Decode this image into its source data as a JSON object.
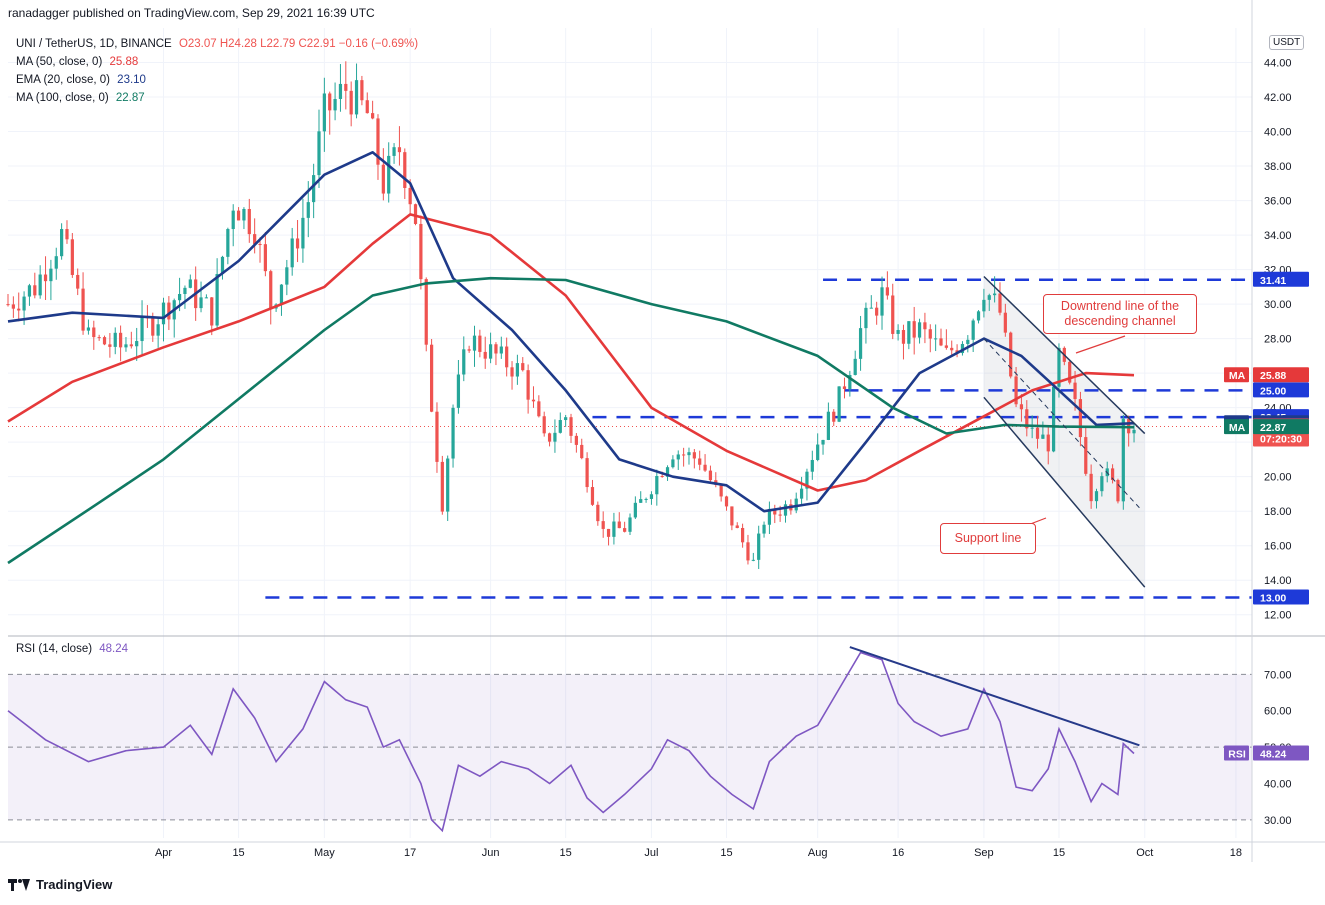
{
  "header": {
    "published": "ranadagger published on TradingView.com, Sep 29, 2021 16:39 UTC"
  },
  "legend": {
    "symbol": "UNI / TetherUS, 1D, BINANCE",
    "ohlc": "O23.07  H24.28  L22.79  C22.91  −0.16 (−0.69%)",
    "ma50_label": "MA (50, close, 0)",
    "ma50_value": "25.88",
    "ema20_label": "EMA (20, close, 0)",
    "ema20_value": "23.10",
    "ma100_label": "MA (100, close, 0)",
    "ma100_value": "22.87",
    "rsi_label": "RSI (14, close)",
    "rsi_value": "48.24",
    "currency": "USDT"
  },
  "annotations": {
    "downtrend": "Downtrend line of the descending channel",
    "support": "Support line"
  },
  "footer": {
    "brand": "TradingView"
  },
  "colors": {
    "up": "#26a69a",
    "down": "#ef5350",
    "ema20": "#1e3a8a",
    "ma50": "#e5393a",
    "ma100": "#107a63",
    "rsi": "#7e57c2",
    "level": "#1e3ad8"
  },
  "chart_data": [
    {
      "type": "candlestick",
      "title": "UNI / TetherUS, 1D, BINANCE",
      "ylim": [
        11,
        46
      ],
      "y_ticks": [
        12,
        14,
        16,
        18,
        20,
        22,
        24,
        26,
        28,
        30,
        32,
        34,
        36,
        38,
        40,
        42,
        44
      ],
      "x_ticks": [
        "Apr",
        "15",
        "May",
        "17",
        "Jun",
        "15",
        "Jul",
        "15",
        "Aug",
        "16",
        "Sep",
        "15",
        "Oct",
        "18"
      ],
      "x_tick_dates": [
        "2021-04-01",
        "2021-04-15",
        "2021-05-01",
        "2021-05-17",
        "2021-06-01",
        "2021-06-15",
        "2021-07-01",
        "2021-07-15",
        "2021-08-01",
        "2021-08-16",
        "2021-09-01",
        "2021-09-15",
        "2021-10-01",
        "2021-10-18"
      ],
      "x_range": [
        "2021-03-03",
        "2021-10-21"
      ],
      "close_keypoints": [
        [
          "2021-03-03",
          30.0
        ],
        [
          "2021-03-08",
          31.0
        ],
        [
          "2021-03-13",
          34.0
        ],
        [
          "2021-03-18",
          28.0
        ],
        [
          "2021-03-24",
          27.5
        ],
        [
          "2021-03-30",
          29.0
        ],
        [
          "2021-04-05",
          31.0
        ],
        [
          "2021-04-10",
          29.5
        ],
        [
          "2021-04-14",
          36.0
        ],
        [
          "2021-04-18",
          34.5
        ],
        [
          "2021-04-21",
          30.0
        ],
        [
          "2021-04-25",
          33.0
        ],
        [
          "2021-04-28",
          36.0
        ],
        [
          "2021-05-01",
          41.0
        ],
        [
          "2021-05-05",
          42.5
        ],
        [
          "2021-05-09",
          41.0
        ],
        [
          "2021-05-12",
          37.0
        ],
        [
          "2021-05-15",
          39.0
        ],
        [
          "2021-05-18",
          35.0
        ],
        [
          "2021-05-20",
          27.0
        ],
        [
          "2021-05-23",
          18.5
        ],
        [
          "2021-05-25",
          24.0
        ],
        [
          "2021-05-28",
          28.0
        ],
        [
          "2021-06-02",
          27.0
        ],
        [
          "2021-06-07",
          26.0
        ],
        [
          "2021-06-11",
          22.0
        ],
        [
          "2021-06-15",
          23.5
        ],
        [
          "2021-06-19",
          20.0
        ],
        [
          "2021-06-22",
          16.8
        ],
        [
          "2021-06-26",
          17.0
        ],
        [
          "2021-07-01",
          19.5
        ],
        [
          "2021-07-05",
          21.5
        ],
        [
          "2021-07-10",
          21.0
        ],
        [
          "2021-07-15",
          18.0
        ],
        [
          "2021-07-20",
          15.0
        ],
        [
          "2021-07-22",
          17.5
        ],
        [
          "2021-07-27",
          18.5
        ],
        [
          "2021-08-01",
          22.0
        ],
        [
          "2021-08-05",
          24.5
        ],
        [
          "2021-08-09",
          28.5
        ],
        [
          "2021-08-13",
          30.5
        ],
        [
          "2021-08-16",
          28.0
        ],
        [
          "2021-08-20",
          28.5
        ],
        [
          "2021-08-25",
          27.0
        ],
        [
          "2021-08-29",
          28.5
        ],
        [
          "2021-09-01",
          31.0
        ],
        [
          "2021-09-04",
          29.5
        ],
        [
          "2021-09-07",
          24.0
        ],
        [
          "2021-09-10",
          22.5
        ],
        [
          "2021-09-13",
          22.0
        ],
        [
          "2021-09-15",
          27.0
        ],
        [
          "2021-09-18",
          24.0
        ],
        [
          "2021-09-21",
          19.0
        ],
        [
          "2021-09-23",
          20.5
        ],
        [
          "2021-09-26",
          19.0
        ],
        [
          "2021-09-27",
          23.5
        ],
        [
          "2021-09-29",
          22.91
        ]
      ],
      "series": [
        {
          "name": "MA (50, close, 0)",
          "points": [
            [
              "2021-03-03",
              23.2
            ],
            [
              "2021-03-15",
              25.5
            ],
            [
              "2021-04-01",
              27.5
            ],
            [
              "2021-04-15",
              29.0
            ],
            [
              "2021-05-01",
              31.0
            ],
            [
              "2021-05-10",
              33.5
            ],
            [
              "2021-05-17",
              35.2
            ],
            [
              "2021-06-01",
              34.0
            ],
            [
              "2021-06-15",
              30.5
            ],
            [
              "2021-07-01",
              24.0
            ],
            [
              "2021-07-15",
              21.5
            ],
            [
              "2021-08-01",
              19.2
            ],
            [
              "2021-08-10",
              19.8
            ],
            [
              "2021-08-20",
              21.5
            ],
            [
              "2021-09-01",
              23.5
            ],
            [
              "2021-09-10",
              25.0
            ],
            [
              "2021-09-20",
              26.0
            ],
            [
              "2021-09-29",
              25.88
            ]
          ]
        },
        {
          "name": "EMA (20, close, 0)",
          "points": [
            [
              "2021-03-03",
              29.0
            ],
            [
              "2021-03-15",
              29.5
            ],
            [
              "2021-04-01",
              29.2
            ],
            [
              "2021-04-15",
              32.5
            ],
            [
              "2021-05-01",
              37.5
            ],
            [
              "2021-05-10",
              38.8
            ],
            [
              "2021-05-17",
              37.0
            ],
            [
              "2021-05-25",
              31.5
            ],
            [
              "2021-06-05",
              28.5
            ],
            [
              "2021-06-15",
              25.0
            ],
            [
              "2021-06-25",
              21.0
            ],
            [
              "2021-07-05",
              20.0
            ],
            [
              "2021-07-15",
              19.5
            ],
            [
              "2021-07-22",
              18.0
            ],
            [
              "2021-08-01",
              18.5
            ],
            [
              "2021-08-10",
              22.0
            ],
            [
              "2021-08-20",
              26.0
            ],
            [
              "2021-09-01",
              28.0
            ],
            [
              "2021-09-08",
              27.0
            ],
            [
              "2021-09-15",
              25.0
            ],
            [
              "2021-09-22",
              23.0
            ],
            [
              "2021-09-29",
              23.1
            ]
          ]
        },
        {
          "name": "MA (100, close, 0)",
          "points": [
            [
              "2021-03-03",
              15.0
            ],
            [
              "2021-03-20",
              18.5
            ],
            [
              "2021-04-01",
              21.0
            ],
            [
              "2021-04-15",
              24.5
            ],
            [
              "2021-05-01",
              28.5
            ],
            [
              "2021-05-10",
              30.5
            ],
            [
              "2021-05-20",
              31.2
            ],
            [
              "2021-06-01",
              31.5
            ],
            [
              "2021-06-15",
              31.4
            ],
            [
              "2021-07-01",
              30.0
            ],
            [
              "2021-07-15",
              29.0
            ],
            [
              "2021-08-01",
              27.0
            ],
            [
              "2021-08-15",
              24.0
            ],
            [
              "2021-08-25",
              22.5
            ],
            [
              "2021-09-05",
              23.0
            ],
            [
              "2021-09-15",
              22.9
            ],
            [
              "2021-09-29",
              22.87
            ]
          ]
        }
      ],
      "levels": [
        {
          "label": "31.41",
          "value": 31.41
        },
        {
          "label": "25.00",
          "value": 25.0
        },
        {
          "label": "23.45",
          "value": 23.45
        },
        {
          "label": "13.00",
          "value": 13.0
        }
      ],
      "price_tags": [
        {
          "tag": "MA",
          "value": 25.88,
          "label": "25.88"
        },
        {
          "tag": "EMA",
          "value": 23.1,
          "label": "23.10"
        },
        {
          "tag": "",
          "value": 22.91,
          "label": "22.91",
          "sub": "07:20:30"
        },
        {
          "tag": "MA",
          "value": 22.87,
          "label": "22.87"
        }
      ],
      "trendlines": [
        {
          "name": "downtrend",
          "from": [
            "2021-09-01",
            31.6
          ],
          "to": [
            "2021-10-01",
            22.5
          ]
        },
        {
          "name": "support",
          "from": [
            "2021-09-01",
            24.6
          ],
          "to": [
            "2021-10-01",
            13.6
          ]
        },
        {
          "name": "midline",
          "from": [
            "2021-09-01",
            28.0
          ],
          "to": [
            "2021-09-30",
            18.2
          ]
        }
      ]
    },
    {
      "type": "line",
      "title": "RSI (14, close)",
      "ylim": [
        25,
        80
      ],
      "y_ticks": [
        30,
        40,
        50,
        60,
        70
      ],
      "bands": [
        30,
        70
      ],
      "series": [
        {
          "name": "RSI (14, close)",
          "points": [
            [
              "2021-03-03",
              60
            ],
            [
              "2021-03-10",
              52
            ],
            [
              "2021-03-18",
              46
            ],
            [
              "2021-03-25",
              49
            ],
            [
              "2021-04-01",
              50
            ],
            [
              "2021-04-06",
              56
            ],
            [
              "2021-04-10",
              48
            ],
            [
              "2021-04-14",
              66
            ],
            [
              "2021-04-18",
              58
            ],
            [
              "2021-04-22",
              46
            ],
            [
              "2021-04-27",
              55
            ],
            [
              "2021-05-01",
              68
            ],
            [
              "2021-05-05",
              63
            ],
            [
              "2021-05-09",
              61
            ],
            [
              "2021-05-12",
              50
            ],
            [
              "2021-05-15",
              52
            ],
            [
              "2021-05-19",
              40
            ],
            [
              "2021-05-21",
              30
            ],
            [
              "2021-05-23",
              27
            ],
            [
              "2021-05-26",
              45
            ],
            [
              "2021-05-30",
              42
            ],
            [
              "2021-06-03",
              46
            ],
            [
              "2021-06-08",
              44
            ],
            [
              "2021-06-12",
              40
            ],
            [
              "2021-06-16",
              45
            ],
            [
              "2021-06-19",
              36
            ],
            [
              "2021-06-22",
              32
            ],
            [
              "2021-06-26",
              37
            ],
            [
              "2021-07-01",
              44
            ],
            [
              "2021-07-04",
              52
            ],
            [
              "2021-07-08",
              49
            ],
            [
              "2021-07-12",
              42
            ],
            [
              "2021-07-16",
              37
            ],
            [
              "2021-07-20",
              33
            ],
            [
              "2021-07-23",
              46
            ],
            [
              "2021-07-28",
              53
            ],
            [
              "2021-08-01",
              56
            ],
            [
              "2021-08-05",
              66
            ],
            [
              "2021-08-09",
              76
            ],
            [
              "2021-08-13",
              74
            ],
            [
              "2021-08-16",
              62
            ],
            [
              "2021-08-19",
              57
            ],
            [
              "2021-08-24",
              53
            ],
            [
              "2021-08-29",
              55
            ],
            [
              "2021-09-01",
              66
            ],
            [
              "2021-09-04",
              57
            ],
            [
              "2021-09-07",
              39
            ],
            [
              "2021-09-10",
              38
            ],
            [
              "2021-09-13",
              44
            ],
            [
              "2021-09-15",
              55
            ],
            [
              "2021-09-18",
              46
            ],
            [
              "2021-09-21",
              35
            ],
            [
              "2021-09-23",
              40
            ],
            [
              "2021-09-26",
              37
            ],
            [
              "2021-09-27",
              51
            ],
            [
              "2021-09-29",
              48.24
            ]
          ]
        }
      ],
      "trendlines": [
        {
          "name": "rsi-downtrend",
          "from": [
            "2021-08-07",
            77.5
          ],
          "to": [
            "2021-09-30",
            50.5
          ]
        }
      ],
      "price_tags": [
        {
          "tag": "RSI",
          "value": 48.24,
          "label": "48.24"
        }
      ]
    }
  ]
}
